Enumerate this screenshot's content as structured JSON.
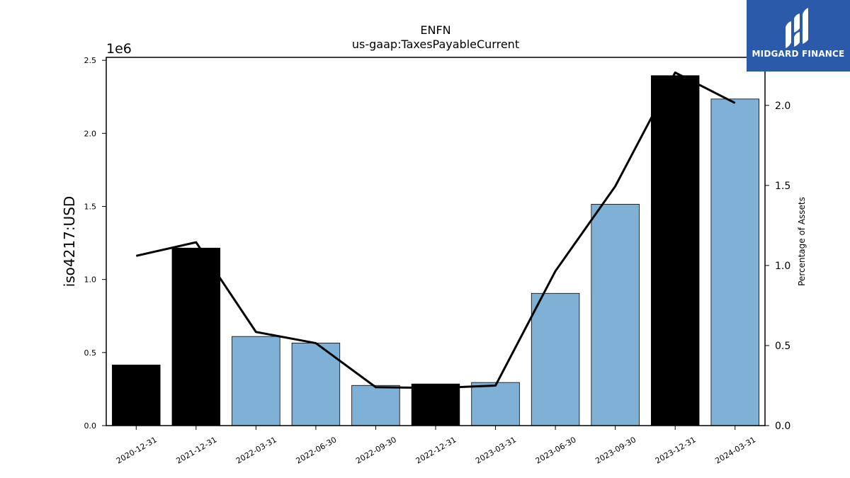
{
  "brand": {
    "name": "MIDGARD FINANCE",
    "color": "#2b5aab"
  },
  "chart_data": {
    "type": "bar",
    "title": "ENFN",
    "subtitle": "us-gaap:TaxesPayableCurrent",
    "ylabel": "iso4217:USD",
    "y2label": "Percentage of Assets",
    "yscale_label": "1e6",
    "ylim": [
      0,
      2.52
    ],
    "y2lim": [
      0,
      2.3
    ],
    "yticks": [
      "0.0",
      "0.5",
      "1.0",
      "1.5",
      "2.0",
      "2.5"
    ],
    "y2ticks": [
      "0.0",
      "0.5",
      "1.0",
      "1.5",
      "2.0"
    ],
    "categories": [
      "2020-12-31",
      "2021-12-31",
      "2022-03-31",
      "2022-06-30",
      "2022-09-30",
      "2022-12-31",
      "2023-03-31",
      "2023-06-30",
      "2023-09-30",
      "2023-12-31",
      "2024-03-31"
    ],
    "series": [
      {
        "type": "bar",
        "values": [
          0.415,
          1.215,
          0.61,
          0.565,
          0.275,
          0.285,
          0.295,
          0.905,
          1.515,
          2.395,
          2.235
        ],
        "annual": [
          true,
          true,
          false,
          false,
          false,
          true,
          false,
          false,
          false,
          true,
          false
        ],
        "colors": {
          "annual": "#000000",
          "quarterly": "#7fb0d5"
        }
      },
      {
        "type": "line",
        "axis": "right",
        "values": [
          1.06,
          1.145,
          0.585,
          0.515,
          0.24,
          0.235,
          0.25,
          0.965,
          1.495,
          2.205,
          2.015
        ],
        "color": "#000000"
      }
    ],
    "grid": false
  }
}
